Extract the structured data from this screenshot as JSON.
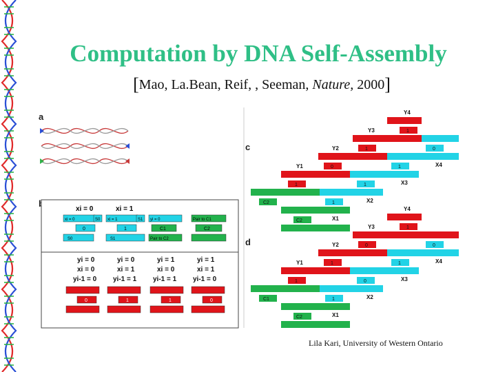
{
  "slide": {
    "title": "Computation by DNA Self-Assembly",
    "citation": {
      "open_bracket": "[",
      "authors": "Mao, La.Bean,  Reif, , Seeman, ",
      "journal": "Nature,",
      "year": " 2000",
      "close_bracket": "]"
    },
    "footer": "Lila Kari, University of Western Ontario"
  },
  "figure": {
    "panel_labels": {
      "a": "a",
      "b": "b",
      "c": "c",
      "d": "d"
    },
    "panel_b": {
      "top_inputs": {
        "t1": "xi = 0",
        "t2": "xi = 1"
      },
      "tiles_top": [
        "xi = 0",
        "xi = 1",
        "yi = 0",
        "Pair to C1",
        "C1",
        "C2",
        "Pair to C2"
      ],
      "tile_tags": [
        "S0",
        "S1",
        "S0",
        "S1"
      ],
      "bits": [
        "0",
        "1",
        "1",
        "0",
        "0",
        "1",
        "1",
        "0"
      ],
      "truth_table": [
        [
          "yi = 0",
          "yi = 0",
          "yi = 1",
          "yi = 1"
        ],
        [
          "xi = 0",
          "xi = 1",
          "xi = 0",
          "xi = 1"
        ],
        [
          "yi-1 = 0",
          "yi-1 = 1",
          "yi-1 = 1",
          "yi-1 = 0"
        ]
      ]
    },
    "panel_c": {
      "y_labels": [
        "Y4",
        "Y3",
        "Y2",
        "Y1"
      ],
      "x_labels": [
        "X4",
        "X3",
        "X2",
        "X1"
      ],
      "bits_red": [
        "1",
        "1",
        "0",
        "1"
      ],
      "bits_cyan": [
        "0",
        "1",
        "1",
        "1"
      ],
      "c_tiles": [
        "C2",
        "C2"
      ]
    },
    "panel_d": {
      "y_labels": [
        "Y4",
        "Y3",
        "Y2",
        "Y1"
      ],
      "x_labels": [
        "X4",
        "X3",
        "X2",
        "X1"
      ],
      "bits_red": [
        "1",
        "0",
        "1",
        "1"
      ],
      "bits_cyan": [
        "0",
        "1",
        "0",
        "1"
      ],
      "c_tiles": [
        "C1",
        "C2"
      ]
    }
  },
  "colors": {
    "title": "#2fbf86",
    "red_tile": "#e0141a",
    "cyan_tile": "#22d3e6",
    "green_tile": "#22b24c"
  }
}
